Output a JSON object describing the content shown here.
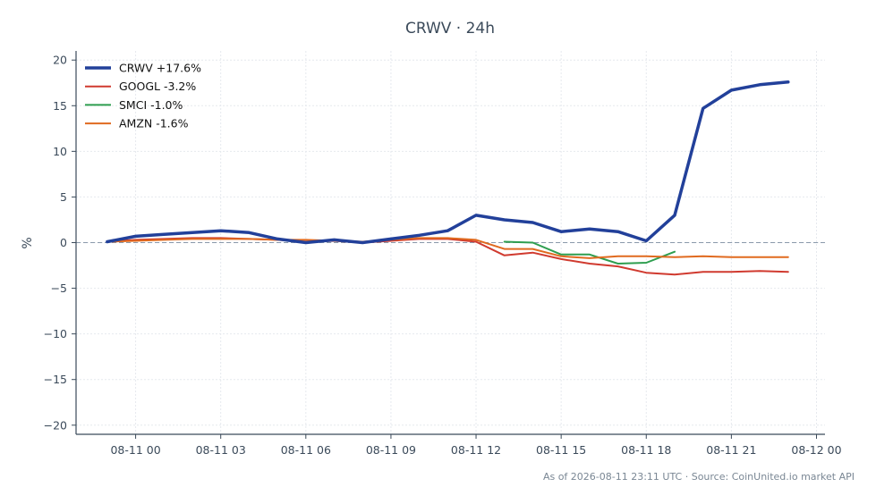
{
  "chart_data": {
    "type": "line",
    "title": "CRWV · 24h",
    "xlabel": "",
    "ylabel": "%",
    "ylim": [
      -21,
      21
    ],
    "xlim_hours": [
      -2.1,
      24.3
    ],
    "yticks": [
      20,
      15,
      10,
      5,
      0,
      -5,
      -10,
      -15,
      -20
    ],
    "ytick_labels": [
      "20",
      "15",
      "10",
      "5",
      "0",
      "−5",
      "−10",
      "−15",
      "−20"
    ],
    "xticks": [
      {
        "hour": 0,
        "label": "08-11 00"
      },
      {
        "hour": 3,
        "label": "08-11 03"
      },
      {
        "hour": 6,
        "label": "08-11 06"
      },
      {
        "hour": 9,
        "label": "08-11 09"
      },
      {
        "hour": 12,
        "label": "08-11 12"
      },
      {
        "hour": 15,
        "label": "08-11 15"
      },
      {
        "hour": 18,
        "label": "08-11 18"
      },
      {
        "hour": 21,
        "label": "08-11 21"
      },
      {
        "hour": 24,
        "label": "08-12 00"
      }
    ],
    "grid": true,
    "legend_position": "top-left",
    "zero_line": true,
    "series": [
      {
        "name": "CRWV +17.6%",
        "color": "#22409a",
        "width": 3.5,
        "x": [
          -1,
          0,
          1,
          2,
          3,
          4,
          5,
          6,
          7,
          8,
          9,
          10,
          11,
          12,
          13,
          14,
          15,
          16,
          17,
          18,
          19,
          20,
          21,
          22,
          23
        ],
        "y": [
          0.1,
          0.7,
          0.9,
          1.1,
          1.3,
          1.1,
          0.4,
          0.0,
          0.3,
          0.0,
          0.4,
          0.8,
          1.3,
          3.0,
          2.5,
          2.2,
          1.2,
          1.5,
          1.2,
          0.2,
          3.0,
          14.7,
          16.7,
          17.3,
          17.6
        ]
      },
      {
        "name": "GOOGL -3.2%",
        "color": "#d03a2f",
        "width": 2,
        "x": [
          -1,
          0,
          1,
          2,
          3,
          4,
          5,
          6,
          7,
          8,
          9,
          10,
          11,
          12,
          13,
          14,
          15,
          16,
          17,
          18,
          19,
          20,
          21,
          22,
          23
        ],
        "y": [
          0.1,
          0.3,
          0.4,
          0.5,
          0.5,
          0.4,
          0.3,
          0.1,
          0.2,
          0.0,
          0.2,
          0.4,
          0.4,
          0.1,
          -1.4,
          -1.1,
          -1.8,
          -2.3,
          -2.6,
          -3.3,
          -3.5,
          -3.2,
          -3.2,
          -3.1,
          -3.2
        ]
      },
      {
        "name": "SMCI -1.0%",
        "color": "#2e9e4f",
        "width": 2,
        "x": [
          13,
          14,
          15,
          16,
          17,
          18,
          19
        ],
        "y": [
          0.1,
          0.0,
          -1.3,
          -1.3,
          -2.3,
          -2.2,
          -1.0
        ]
      },
      {
        "name": "AMZN -1.6%",
        "color": "#e06a1f",
        "width": 2,
        "x": [
          -1,
          0,
          1,
          2,
          3,
          4,
          5,
          6,
          7,
          8,
          9,
          10,
          11,
          12,
          13,
          14,
          15,
          16,
          17,
          18,
          19,
          20,
          21,
          22,
          23
        ],
        "y": [
          0.1,
          0.2,
          0.3,
          0.4,
          0.4,
          0.4,
          0.3,
          0.3,
          0.2,
          0.1,
          0.3,
          0.5,
          0.5,
          0.3,
          -0.7,
          -0.7,
          -1.5,
          -1.7,
          -1.5,
          -1.5,
          -1.6,
          -1.5,
          -1.6,
          -1.6,
          -1.6
        ]
      }
    ]
  },
  "footer": "As of 2026-08-11 23:11 UTC · Source: CoinUnited.io market API"
}
